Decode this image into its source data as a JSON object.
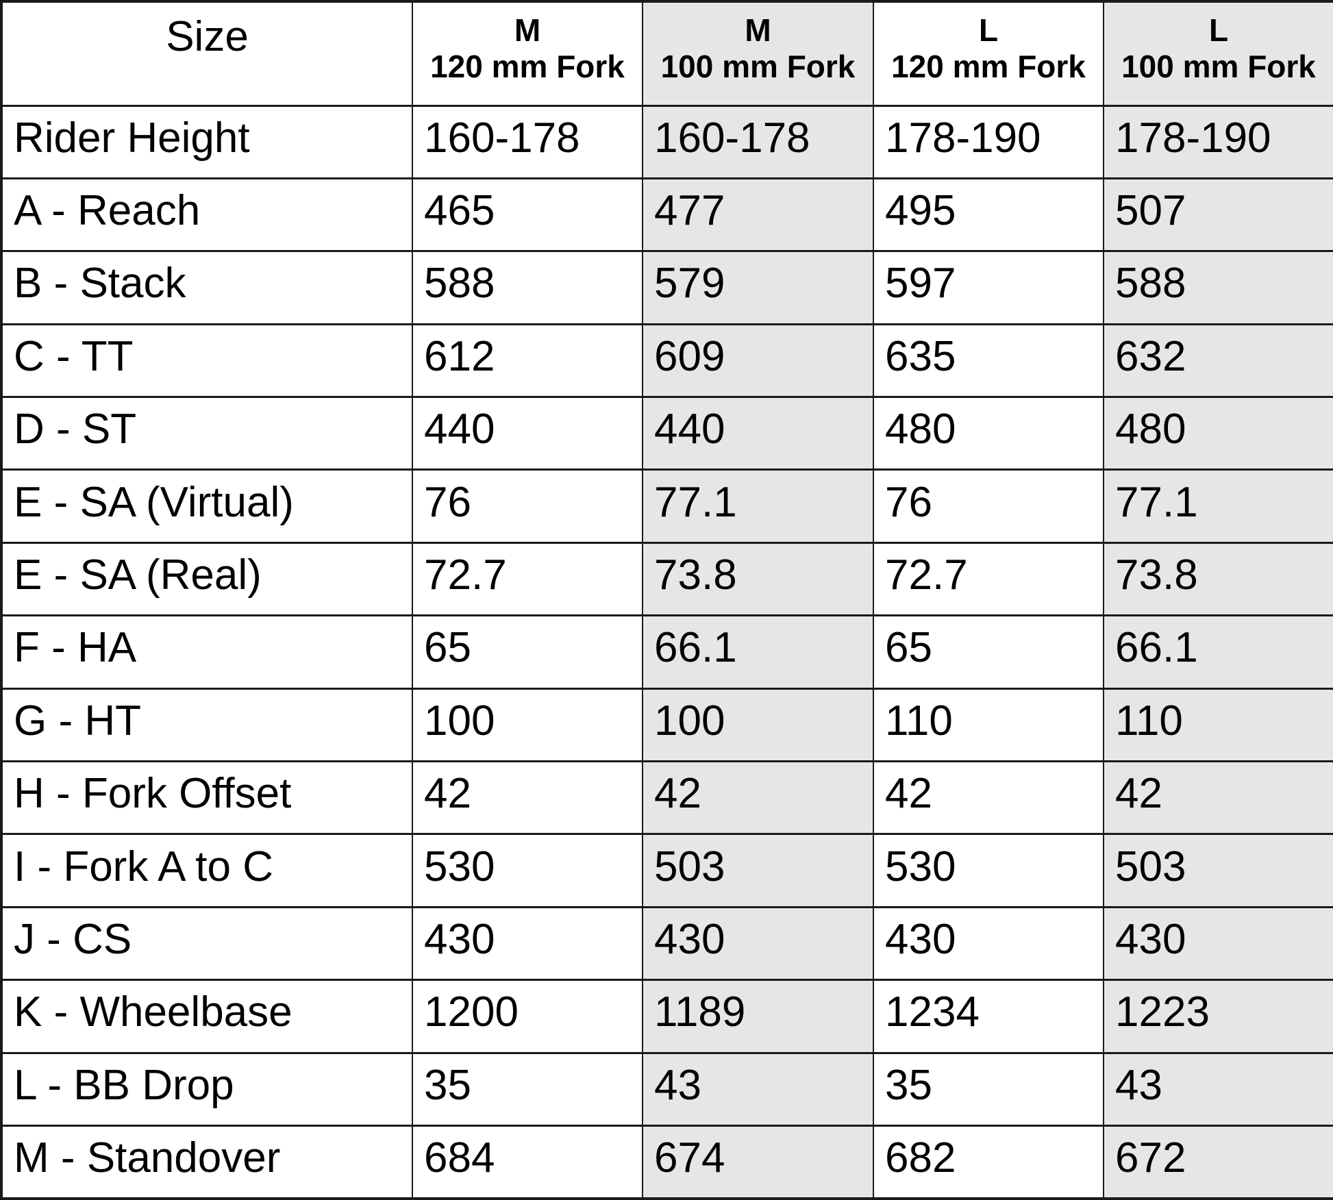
{
  "colors": {
    "background": "#ffffff",
    "text": "#000000",
    "border": "#1a1a1a",
    "shaded_cell": "#e6e6e6"
  },
  "chart_data": {
    "type": "table",
    "header": {
      "size_label": "Size",
      "data_columns": [
        {
          "size": "M",
          "fork": "120 mm Fork",
          "shaded": false
        },
        {
          "size": "M",
          "fork": "100 mm Fork",
          "shaded": true
        },
        {
          "size": "L",
          "fork": "120 mm Fork",
          "shaded": false
        },
        {
          "size": "L",
          "fork": "100 mm Fork",
          "shaded": true
        }
      ]
    },
    "rows": [
      {
        "label": "Rider Height",
        "values": [
          "160-178",
          "160-178",
          "178-190",
          "178-190"
        ]
      },
      {
        "label": "A - Reach",
        "values": [
          "465",
          "477",
          "495",
          "507"
        ]
      },
      {
        "label": "B - Stack",
        "values": [
          "588",
          "579",
          "597",
          "588"
        ]
      },
      {
        "label": "C - TT",
        "values": [
          "612",
          "609",
          "635",
          "632"
        ]
      },
      {
        "label": "D - ST",
        "values": [
          "440",
          "440",
          "480",
          "480"
        ]
      },
      {
        "label": "E - SA (Virtual)",
        "values": [
          "76",
          "77.1",
          "76",
          "77.1"
        ]
      },
      {
        "label": "E - SA (Real)",
        "values": [
          "72.7",
          "73.8",
          "72.7",
          "73.8"
        ]
      },
      {
        "label": "F - HA",
        "values": [
          "65",
          "66.1",
          "65",
          "66.1"
        ]
      },
      {
        "label": "G - HT",
        "values": [
          "100",
          "100",
          "110",
          "110"
        ]
      },
      {
        "label": "H - Fork Offset",
        "values": [
          "42",
          "42",
          "42",
          "42"
        ]
      },
      {
        "label": "I - Fork A to C",
        "values": [
          "530",
          "503",
          "530",
          "503"
        ]
      },
      {
        "label": "J - CS",
        "values": [
          "430",
          "430",
          "430",
          "430"
        ]
      },
      {
        "label": "K - Wheelbase",
        "values": [
          "1200",
          "1189",
          "1234",
          "1223"
        ]
      },
      {
        "label": "L - BB Drop",
        "values": [
          "35",
          "43",
          "35",
          "43"
        ]
      },
      {
        "label": "M - Standover",
        "values": [
          "684",
          "674",
          "682",
          "672"
        ]
      }
    ]
  }
}
